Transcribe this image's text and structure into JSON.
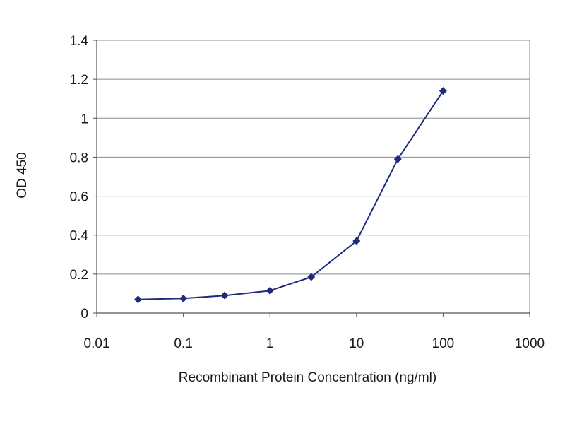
{
  "chart_data": {
    "type": "line",
    "title": "",
    "xlabel": "Recombinant Protein Concentration (ng/ml)",
    "ylabel": "OD 450",
    "xscale": "log",
    "xlim": [
      0.01,
      1000
    ],
    "ylim": [
      0,
      1.4
    ],
    "xticks": [
      0.01,
      0.1,
      1,
      10,
      100,
      1000
    ],
    "xtick_labels": [
      "0.01",
      "0.1",
      "1",
      "10",
      "100",
      "1000"
    ],
    "yticks": [
      0,
      0.2,
      0.4,
      0.6,
      0.8,
      1,
      1.2,
      1.4
    ],
    "ytick_labels": [
      "0",
      "0.2",
      "0.4",
      "0.6",
      "0.8",
      "1",
      "1.2",
      "1.4"
    ],
    "grid": "horizontal",
    "legend": "none",
    "series": [
      {
        "color": "#1f2a7a",
        "marker": "diamond",
        "x": [
          0.03,
          0.1,
          0.3,
          1,
          3,
          10,
          30,
          100
        ],
        "y": [
          0.07,
          0.075,
          0.09,
          0.115,
          0.185,
          0.37,
          0.79,
          1.14
        ]
      }
    ]
  }
}
